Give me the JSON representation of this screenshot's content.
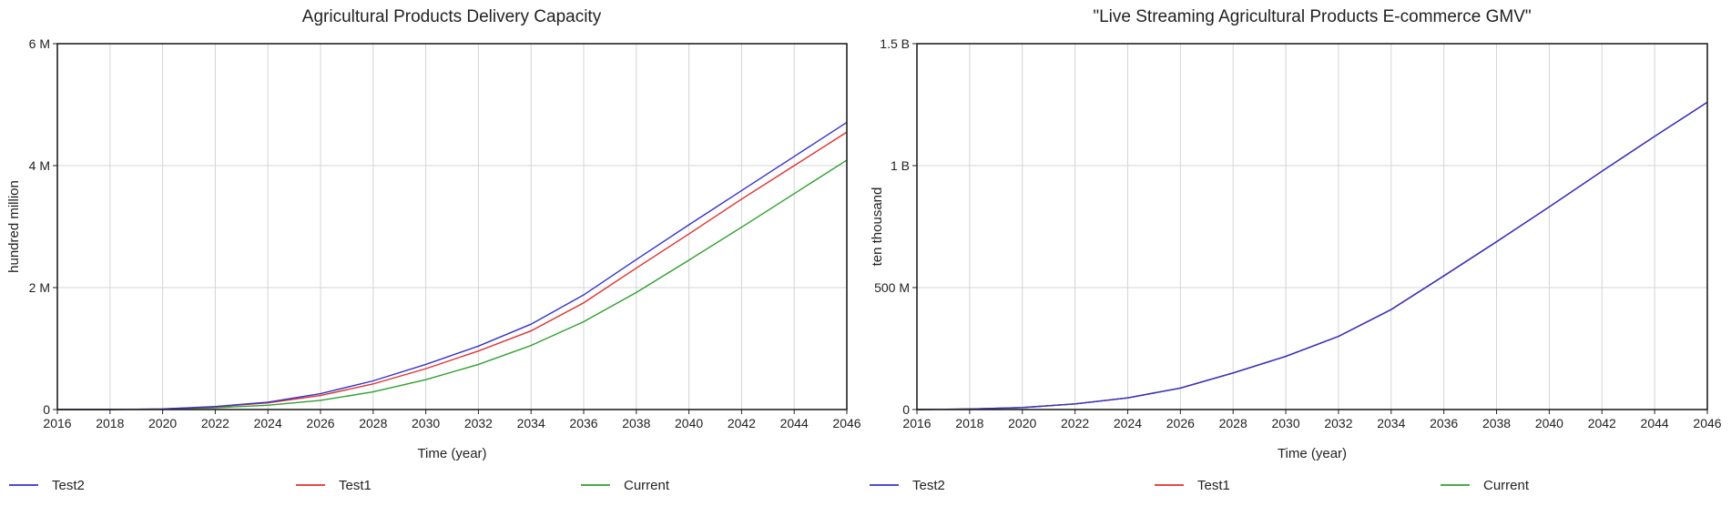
{
  "chart_data": [
    {
      "type": "line",
      "title": "Agricultural Products Delivery Capacity",
      "xlabel": "Time (year)",
      "ylabel": "hundred million",
      "xlim": [
        2016,
        2046
      ],
      "ylim": [
        0,
        6000000
      ],
      "x_ticks": [
        "2016",
        "2018",
        "2020",
        "2022",
        "2024",
        "2026",
        "2028",
        "2030",
        "2032",
        "2034",
        "2036",
        "2038",
        "2040",
        "2042",
        "2044",
        "2046"
      ],
      "y_ticks": [
        {
          "value": 0,
          "label": "0"
        },
        {
          "value": 2000000,
          "label": "2 M"
        },
        {
          "value": 4000000,
          "label": "4 M"
        },
        {
          "value": 6000000,
          "label": "6 M"
        }
      ],
      "grid": true,
      "legend_position": "bottom",
      "x": [
        2016,
        2018,
        2020,
        2022,
        2024,
        2026,
        2028,
        2030,
        2032,
        2034,
        2036,
        2038,
        2040,
        2042,
        2044,
        2046
      ],
      "series": [
        {
          "name": "Test2",
          "color": "#3333cc",
          "values": [
            0,
            0,
            10000,
            50000,
            120000,
            260000,
            470000,
            740000,
            1040000,
            1400000,
            1880000,
            2460000,
            3030000,
            3590000,
            4150000,
            4710000
          ]
        },
        {
          "name": "Test1",
          "color": "#e03030",
          "values": [
            0,
            0,
            8000,
            45000,
            110000,
            230000,
            420000,
            670000,
            960000,
            1290000,
            1750000,
            2320000,
            2880000,
            3450000,
            4000000,
            4550000
          ]
        },
        {
          "name": "Current",
          "color": "#2ea02e",
          "values": [
            0,
            0,
            5000,
            30000,
            70000,
            150000,
            290000,
            490000,
            740000,
            1050000,
            1440000,
            1920000,
            2450000,
            2990000,
            3540000,
            4090000
          ]
        }
      ]
    },
    {
      "type": "line",
      "title": "\"Live Streaming Agricultural Products E-commerce GMV\"",
      "xlabel": "Time (year)",
      "ylabel": "ten thousand",
      "xlim": [
        2016,
        2046
      ],
      "ylim": [
        0,
        1500000000
      ],
      "x_ticks": [
        "2016",
        "2018",
        "2020",
        "2022",
        "2024",
        "2026",
        "2028",
        "2030",
        "2032",
        "2034",
        "2036",
        "2038",
        "2040",
        "2042",
        "2044",
        "2046"
      ],
      "y_ticks": [
        {
          "value": 0,
          "label": "0"
        },
        {
          "value": 500000000,
          "label": "500 M"
        },
        {
          "value": 1000000000,
          "label": "1 B"
        },
        {
          "value": 1500000000,
          "label": "1.5 B"
        }
      ],
      "grid": true,
      "legend_position": "bottom",
      "x": [
        2016,
        2018,
        2020,
        2022,
        2024,
        2026,
        2028,
        2030,
        2032,
        2034,
        2036,
        2038,
        2040,
        2042,
        2044,
        2046
      ],
      "series": [
        {
          "name": "Test2",
          "color": "#3333cc",
          "values": [
            0,
            2000000,
            8000000,
            23000000,
            48000000,
            88000000,
            150000000,
            218000000,
            300000000,
            410000000,
            548000000,
            688000000,
            831000000,
            977000000,
            1120000000,
            1260000000
          ]
        },
        {
          "name": "Test1",
          "color": "#e03030",
          "values": [
            0,
            2000000,
            8000000,
            23000000,
            48000000,
            88000000,
            150000000,
            218000000,
            300000000,
            410000000,
            548000000,
            688000000,
            831000000,
            977000000,
            1120000000,
            1260000000
          ]
        },
        {
          "name": "Current",
          "color": "#2ea02e",
          "values": [
            0,
            2000000,
            8000000,
            23000000,
            48000000,
            88000000,
            150000000,
            218000000,
            300000000,
            410000000,
            548000000,
            688000000,
            831000000,
            977000000,
            1120000000,
            1260000000
          ]
        }
      ]
    }
  ]
}
